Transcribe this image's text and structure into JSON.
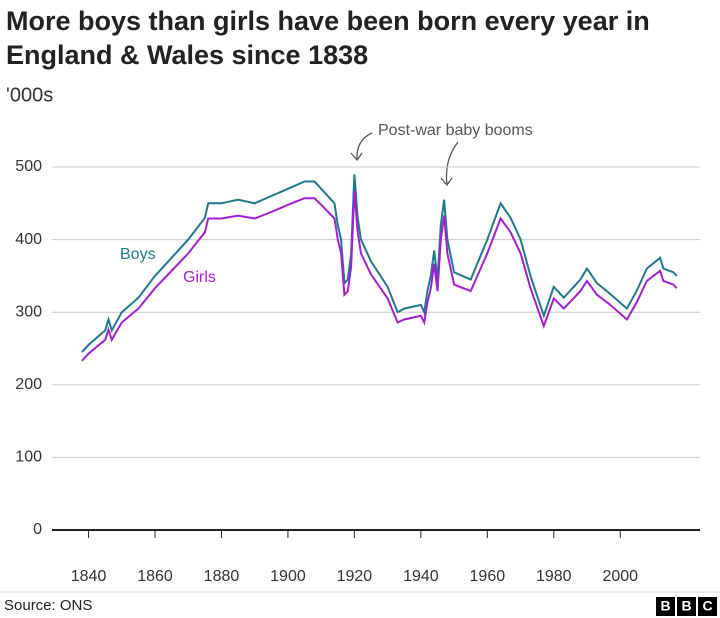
{
  "chart_data": {
    "type": "line",
    "title": "More boys than girls have been born every year in England & Wales since 1838",
    "subtitle": "'000s",
    "annotation": "Post-war baby booms",
    "x": [
      1838,
      1840,
      1845,
      1846,
      1847,
      1850,
      1855,
      1860,
      1865,
      1870,
      1875,
      1876,
      1880,
      1885,
      1890,
      1895,
      1900,
      1905,
      1908,
      1910,
      1914,
      1915,
      1916,
      1917,
      1918,
      1919,
      1920,
      1921,
      1922,
      1925,
      1930,
      1933,
      1935,
      1940,
      1941,
      1942,
      1943,
      1944,
      1945,
      1946,
      1947,
      1948,
      1950,
      1955,
      1960,
      1964,
      1967,
      1970,
      1973,
      1977,
      1980,
      1983,
      1988,
      1990,
      1993,
      1997,
      2002,
      2005,
      2008,
      2012,
      2013,
      2016,
      2017
    ],
    "series": [
      {
        "name": "Boys",
        "color": "#1d7a90",
        "values": [
          245,
          255,
          275,
          290,
          275,
          300,
          320,
          350,
          375,
          400,
          430,
          450,
          450,
          455,
          450,
          460,
          470,
          480,
          480,
          470,
          450,
          420,
          400,
          340,
          345,
          380,
          490,
          430,
          400,
          370,
          335,
          300,
          305,
          310,
          300,
          330,
          350,
          385,
          345,
          420,
          455,
          400,
          355,
          345,
          400,
          450,
          430,
          400,
          350,
          295,
          335,
          320,
          345,
          360,
          340,
          325,
          305,
          330,
          360,
          375,
          360,
          355,
          350
        ]
      },
      {
        "name": "Girls",
        "color": "#a51ed6",
        "values": [
          233,
          243,
          262,
          276,
          262,
          286,
          305,
          333,
          357,
          381,
          410,
          429,
          429,
          433,
          429,
          438,
          448,
          457,
          457,
          448,
          429,
          400,
          381,
          324,
          329,
          362,
          467,
          410,
          381,
          352,
          319,
          286,
          290,
          295,
          286,
          314,
          333,
          367,
          329,
          400,
          433,
          381,
          338,
          329,
          381,
          429,
          410,
          381,
          333,
          281,
          319,
          305,
          329,
          343,
          324,
          310,
          290,
          314,
          343,
          357,
          343,
          338,
          333
        ]
      }
    ],
    "xlim": [
      1829,
      2024
    ],
    "xticks": [
      1840,
      1860,
      1880,
      1900,
      1920,
      1940,
      1960,
      1980,
      2000
    ],
    "ylim": [
      0,
      500
    ],
    "yticks": [
      0,
      100,
      200,
      300,
      400,
      500
    ],
    "grid": true
  },
  "footer": {
    "source": "Source: ONS",
    "logo": [
      "B",
      "B",
      "C"
    ]
  }
}
